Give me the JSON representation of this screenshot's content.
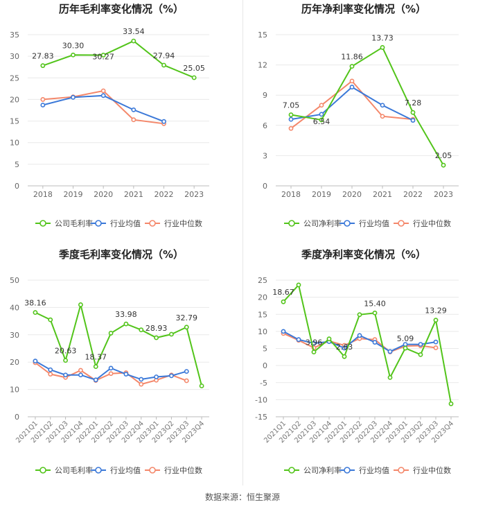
{
  "footer": {
    "source": "数据来源：恒生聚源"
  },
  "colors": {
    "company": "#52c41a",
    "avg": "#3a78d8",
    "median": "#f4876a"
  },
  "chart_data": [
    {
      "type": "line",
      "title": "历年毛利率变化情况（%）",
      "categories": [
        "2018",
        "2019",
        "2020",
        "2021",
        "2022",
        "2023"
      ],
      "ylim": [
        0,
        35
      ],
      "yticks": [
        0,
        5,
        10,
        15,
        20,
        25,
        30,
        35
      ],
      "grid": true,
      "legend": "bottom",
      "series": [
        {
          "name": "公司毛利率",
          "key": "company",
          "values": [
            27.83,
            30.3,
            30.27,
            33.54,
            27.94,
            25.05
          ],
          "labels": [
            "27.83",
            "30.30",
            "30.27",
            "33.54",
            "27.94",
            "25.05"
          ]
        },
        {
          "name": "行业均值",
          "key": "avg",
          "values": [
            18.7,
            20.5,
            20.9,
            17.6,
            14.9,
            null
          ]
        },
        {
          "name": "行业中位数",
          "key": "median",
          "values": [
            20.0,
            20.6,
            22.0,
            15.3,
            14.4,
            null
          ]
        }
      ]
    },
    {
      "type": "line",
      "title": "历年净利率变化情况（%）",
      "categories": [
        "2018",
        "2019",
        "2020",
        "2021",
        "2022",
        "2023"
      ],
      "ylim": [
        0,
        15
      ],
      "yticks": [
        0,
        3,
        6,
        9,
        12,
        15
      ],
      "grid": true,
      "legend": "bottom",
      "series": [
        {
          "name": "公司净利率",
          "key": "company",
          "values": [
            7.05,
            6.54,
            11.86,
            13.73,
            7.28,
            2.05
          ],
          "labels": [
            "7.05",
            "6.54",
            "11.86",
            "13.73",
            "7.28",
            "2.05"
          ]
        },
        {
          "name": "行业均值",
          "key": "avg",
          "values": [
            6.6,
            7.1,
            9.8,
            8.0,
            6.5,
            null
          ]
        },
        {
          "name": "行业中位数",
          "key": "median",
          "values": [
            5.7,
            8.0,
            10.4,
            6.9,
            6.6,
            null
          ]
        }
      ]
    },
    {
      "type": "line",
      "title": "季度毛利率变化情况（%）",
      "categories": [
        "2021Q1",
        "2021Q2",
        "2021Q3",
        "2021Q4",
        "2022Q1",
        "2022Q2",
        "2022Q3",
        "2022Q4",
        "2023Q1",
        "2023Q2",
        "2023Q3",
        "2023Q4"
      ],
      "ylim": [
        0,
        50
      ],
      "yticks": [
        0,
        10,
        20,
        30,
        40,
        50
      ],
      "grid": true,
      "legend": "bottom",
      "series": [
        {
          "name": "公司毛利率",
          "key": "company",
          "values": [
            38.16,
            35.5,
            20.63,
            41.0,
            18.37,
            30.6,
            33.98,
            31.8,
            28.93,
            30.2,
            32.79,
            11.3
          ],
          "labels": [
            "38.16",
            "",
            "20.63",
            "",
            "18.37",
            "",
            "33.98",
            "",
            "28.93",
            "",
            "32.79",
            ""
          ]
        },
        {
          "name": "行业均值",
          "key": "avg",
          "values": [
            20.4,
            17.2,
            15.3,
            15.3,
            13.5,
            17.8,
            15.6,
            13.7,
            14.6,
            15.0,
            16.6,
            null
          ]
        },
        {
          "name": "行业中位数",
          "key": "median",
          "values": [
            19.8,
            15.6,
            14.4,
            17.0,
            13.3,
            15.8,
            16.1,
            11.9,
            13.4,
            15.3,
            13.2,
            null
          ]
        }
      ]
    },
    {
      "type": "line",
      "title": "季度净利率变化情况（%）",
      "categories": [
        "2021Q1",
        "2021Q2",
        "2021Q3",
        "2021Q4",
        "2022Q1",
        "2022Q2",
        "2022Q3",
        "2022Q4",
        "2023Q1",
        "2023Q2",
        "2023Q3",
        "2023Q4"
      ],
      "ylim": [
        -15,
        25
      ],
      "yticks": [
        -15,
        -10,
        -5,
        0,
        5,
        10,
        15,
        20,
        25
      ],
      "grid": true,
      "legend": "bottom",
      "series": [
        {
          "name": "公司净利率",
          "key": "company",
          "values": [
            18.67,
            23.6,
            3.96,
            7.8,
            2.63,
            14.9,
            15.4,
            -3.5,
            5.09,
            3.2,
            13.29,
            -11.2
          ],
          "labels": [
            "18.67",
            "",
            "3.96",
            "",
            "2.63",
            "",
            "15.40",
            "",
            "5.09",
            "",
            "13.29",
            ""
          ]
        },
        {
          "name": "行业均值",
          "key": "avg",
          "values": [
            10.0,
            7.6,
            6.5,
            7.0,
            5.1,
            8.8,
            6.8,
            4.1,
            6.2,
            6.2,
            6.9,
            null
          ]
        },
        {
          "name": "行业中位数",
          "key": "median",
          "values": [
            9.4,
            7.4,
            5.2,
            7.2,
            5.9,
            7.9,
            7.6,
            4.0,
            5.7,
            5.8,
            5.2,
            null
          ]
        }
      ]
    }
  ]
}
